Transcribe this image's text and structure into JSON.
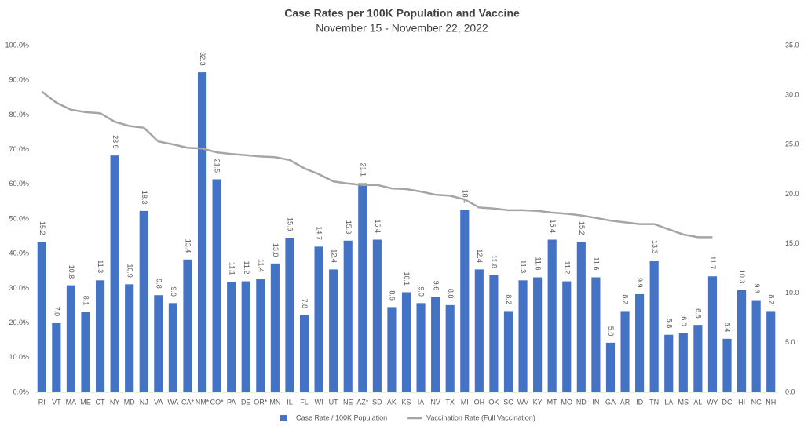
{
  "chart_data": {
    "type": "bar-line",
    "title": "Case Rates per 100K Population and Vaccine",
    "subtitle": "November 15 - November 22, 2022",
    "categories": [
      "RI",
      "VT",
      "MA",
      "ME",
      "CT",
      "NY",
      "MD",
      "NJ",
      "VA",
      "WA",
      "CA*",
      "NM*",
      "CO*",
      "PA",
      "DE",
      "OR*",
      "MN",
      "IL",
      "FL",
      "WI",
      "UT",
      "NE",
      "AZ*",
      "SD",
      "AK",
      "KS",
      "IA",
      "NV",
      "TX",
      "MI",
      "OH",
      "OK",
      "SC",
      "WV",
      "KY",
      "MT",
      "MO",
      "ND",
      "IN",
      "GA",
      "AR",
      "ID",
      "TN",
      "LA",
      "MS",
      "AL",
      "WY",
      "DC",
      "HI",
      "NC",
      "NH"
    ],
    "series": [
      {
        "name": "Case Rate / 100K Population",
        "type": "bar",
        "axis": "y2",
        "color": "#4472c4",
        "values": [
          15.2,
          7.0,
          10.8,
          8.1,
          11.3,
          23.9,
          10.9,
          18.3,
          9.8,
          9.0,
          13.4,
          32.3,
          21.5,
          11.1,
          11.2,
          11.4,
          13.0,
          15.6,
          7.8,
          14.7,
          12.4,
          15.3,
          21.1,
          15.4,
          8.6,
          10.1,
          9.0,
          9.6,
          8.8,
          18.4,
          12.4,
          11.8,
          8.2,
          11.3,
          11.6,
          15.4,
          11.2,
          15.2,
          11.6,
          5.0,
          8.2,
          9.9,
          13.3,
          5.8,
          6.0,
          6.8,
          11.7,
          5.4,
          10.3,
          9.3,
          8.2
        ],
        "value_labels": [
          "15.2",
          "7.0",
          "10.8",
          "8.1",
          "11.3",
          "23.9",
          "10.9",
          "18.3",
          "9.8",
          "9.0",
          "13.4",
          "32.3",
          "21.5",
          "11.1",
          "11.2",
          "11.4",
          "13.0",
          "15.6",
          "7.8",
          "14.7",
          "12.4",
          "15.3",
          "21.1",
          "15.4",
          "8.6",
          "10.1",
          "9.0",
          "9.6",
          "8.8",
          "18.4",
          "12.4",
          "11.8",
          "8.2",
          "11.3",
          "11.6",
          "15.4",
          "11.2",
          "15.2",
          "11.6",
          "5.0",
          "8.2",
          "9.9",
          "13.3",
          "5.8",
          "6.0",
          "6.8",
          "11.7",
          "5.4",
          "10.3",
          "9.3",
          "8.2"
        ]
      },
      {
        "name": "Vaccination Rate (Full Vaccination)",
        "type": "line",
        "axis": "y",
        "color": "#a5a5a5",
        "values": [
          86.7,
          83.5,
          81.5,
          80.8,
          80.5,
          78.0,
          76.8,
          76.3,
          72.3,
          71.5,
          70.5,
          70.3,
          69.2,
          68.7,
          68.4,
          68.0,
          67.8,
          67.0,
          64.6,
          62.9,
          60.8,
          60.2,
          59.8,
          59.8,
          58.8,
          58.6,
          57.9,
          57.0,
          56.7,
          55.6,
          53.3,
          53.0,
          52.5,
          52.5,
          52.3,
          51.8,
          51.5,
          51.0,
          50.3,
          49.5,
          49.0,
          48.5,
          48.5,
          47.0,
          45.5,
          44.7,
          44.7,
          null,
          null,
          null,
          null
        ]
      }
    ],
    "ylim": [
      0,
      100
    ],
    "yticks": [
      {
        "value": 0,
        "label": "0.0%"
      },
      {
        "value": 10,
        "label": "10.0%"
      },
      {
        "value": 20,
        "label": "20.0%"
      },
      {
        "value": 30,
        "label": "30.0%"
      },
      {
        "value": 40,
        "label": "40.0%"
      },
      {
        "value": 50,
        "label": "50.0%"
      },
      {
        "value": 60,
        "label": "60.0%"
      },
      {
        "value": 70,
        "label": "70.0%"
      },
      {
        "value": 80,
        "label": "80.0%"
      },
      {
        "value": 90,
        "label": "90.0%"
      },
      {
        "value": 100,
        "label": "100.0%"
      }
    ],
    "y2lim": [
      0,
      35
    ],
    "y2ticks": [
      {
        "value": 0,
        "label": "0.0"
      },
      {
        "value": 5,
        "label": "5.0"
      },
      {
        "value": 10,
        "label": "10.0"
      },
      {
        "value": 15,
        "label": "15.0"
      },
      {
        "value": 20,
        "label": "20.0"
      },
      {
        "value": 25,
        "label": "25.0"
      },
      {
        "value": 30,
        "label": "30.0"
      },
      {
        "value": 35,
        "label": "35.0"
      }
    ],
    "legend": "bottom"
  }
}
